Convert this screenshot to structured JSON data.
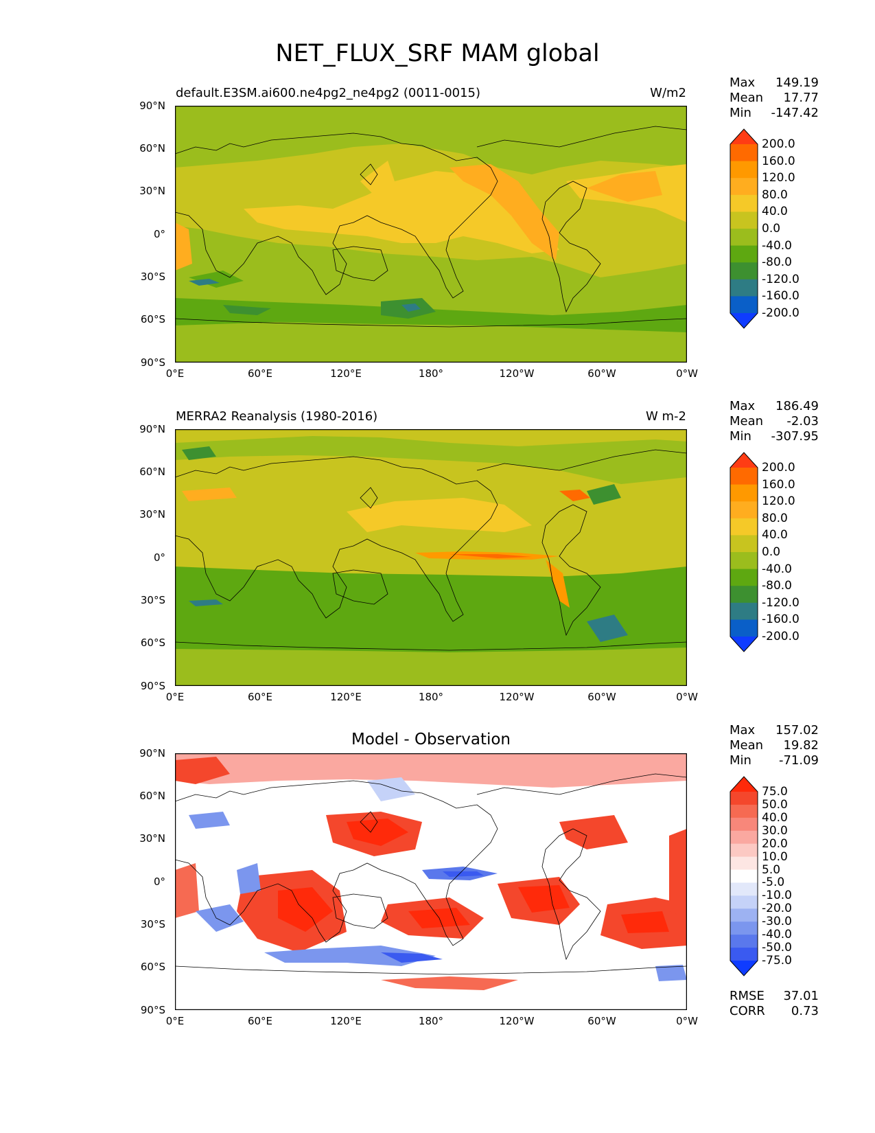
{
  "figure": {
    "title": "NET_FLUX_SRF MAM global"
  },
  "lat_labels": [
    "90°N",
    "60°N",
    "30°N",
    "0°",
    "30°S",
    "60°S",
    "90°S"
  ],
  "lon_labels": [
    "0°E",
    "60°E",
    "120°E",
    "180°",
    "120°W",
    "60°W",
    "0°W"
  ],
  "panels": [
    {
      "title_left": "default.E3SM.ai600.ne4pg2_ne4pg2 (0011-0015)",
      "title_right": "W/m2",
      "stats": {
        "max_label": "Max",
        "max": "149.19",
        "mean_label": "Mean",
        "mean": "17.77",
        "min_label": "Min",
        "min": "-147.42"
      },
      "colorbar": {
        "levels": [
          "200.0",
          "160.0",
          "120.0",
          "80.0",
          "40.0",
          "0.0",
          "-40.0",
          "-80.0",
          "-120.0",
          "-160.0",
          "-200.0"
        ],
        "colors": [
          "#ff3c14",
          "#ff6a00",
          "#ff9900",
          "#ffad1f",
          "#f5c928",
          "#c8c41f",
          "#9bbd1d",
          "#5ea811",
          "#3d9030",
          "#2e7c84",
          "#0a5fc8",
          "#0f3cff"
        ]
      }
    },
    {
      "title_left": "MERRA2 Reanalysis (1980-2016)",
      "title_right": "W m-2",
      "stats": {
        "max_label": "Max",
        "max": "186.49",
        "mean_label": "Mean",
        "mean": "-2.03",
        "min_label": "Min",
        "min": "-307.95"
      },
      "colorbar": {
        "levels": [
          "200.0",
          "160.0",
          "120.0",
          "80.0",
          "40.0",
          "0.0",
          "-40.0",
          "-80.0",
          "-120.0",
          "-160.0",
          "-200.0"
        ],
        "colors": [
          "#ff3c14",
          "#ff6a00",
          "#ff9900",
          "#ffad1f",
          "#f5c928",
          "#c8c41f",
          "#9bbd1d",
          "#5ea811",
          "#3d9030",
          "#2e7c84",
          "#0a5fc8",
          "#0f3cff"
        ]
      }
    },
    {
      "title_center": "Model - Observation",
      "stats": {
        "max_label": "Max",
        "max": "157.02",
        "mean_label": "Mean",
        "mean": "19.82",
        "min_label": "Min",
        "min": "-71.09"
      },
      "colorbar": {
        "levels": [
          "75.0",
          "50.0",
          "40.0",
          "30.0",
          "20.0",
          "10.0",
          "5.0",
          "-5.0",
          "-10.0",
          "-20.0",
          "-30.0",
          "-40.0",
          "-50.0",
          "-75.0"
        ],
        "colors": [
          "#ff2a0a",
          "#f4472c",
          "#f66a52",
          "#f8877a",
          "#faa8a0",
          "#fcc9c3",
          "#fde6e3",
          "#ffffff",
          "#e2e8fa",
          "#c5d2f8",
          "#9db2f2",
          "#7b96ee",
          "#5a78ec",
          "#3a5af0",
          "#0f3cff"
        ]
      },
      "rmse": {
        "rmse_label": "RMSE",
        "rmse": "37.01",
        "corr_label": "CORR",
        "corr": "0.73"
      }
    }
  ]
}
